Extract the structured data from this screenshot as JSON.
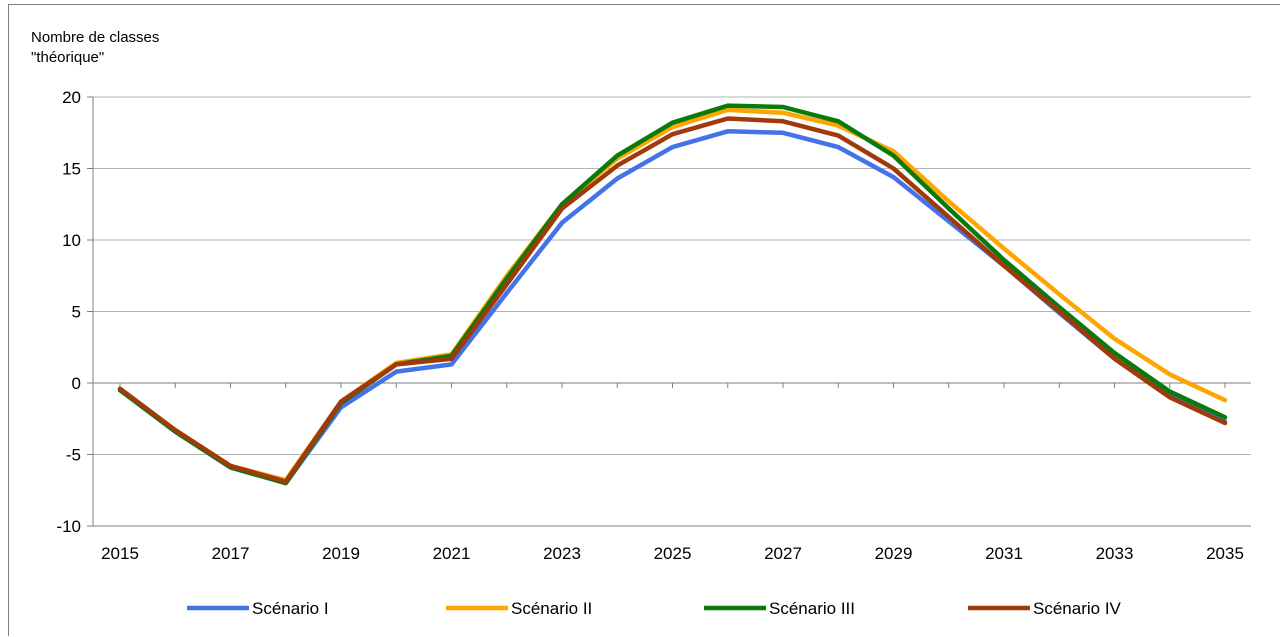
{
  "chart_data": {
    "type": "line",
    "title": "",
    "ylabel_lines": [
      "Nombre de classes",
      "\"théorique\""
    ],
    "xlabel": "",
    "ylim": [
      -10,
      20
    ],
    "yticks": [
      20,
      15,
      10,
      5,
      0,
      -5,
      -10
    ],
    "ytick_labels": [
      "20",
      "15",
      "10",
      "5",
      "0",
      "-5",
      "-10"
    ],
    "x": [
      2015,
      2016,
      2017,
      2018,
      2019,
      2020,
      2021,
      2022,
      2023,
      2024,
      2025,
      2026,
      2027,
      2028,
      2029,
      2030,
      2031,
      2032,
      2033,
      2034,
      2035
    ],
    "xtick_labels": [
      "2015",
      "2017",
      "2019",
      "2021",
      "2023",
      "2025",
      "2027",
      "2029",
      "2031",
      "2033",
      "2035"
    ],
    "xlim": [
      2015,
      2035
    ],
    "grid": "horizontal",
    "legend_position": "bottom",
    "series": [
      {
        "name": "Scénario I",
        "color": "#4472e8",
        "values": [
          -0.5,
          -3.4,
          -5.9,
          -7.0,
          -1.7,
          0.8,
          1.3,
          6.3,
          11.2,
          14.3,
          16.5,
          17.6,
          17.5,
          16.5,
          14.4,
          11.3,
          8.2,
          4.9,
          1.7,
          -0.9,
          -2.7
        ]
      },
      {
        "name": "Scénario II",
        "color": "#ffa500",
        "values": [
          -0.5,
          -3.3,
          -5.8,
          -6.8,
          -1.3,
          1.4,
          2.0,
          7.5,
          12.5,
          15.7,
          17.9,
          19.1,
          18.9,
          18.0,
          16.2,
          12.7,
          9.4,
          6.2,
          3.1,
          0.6,
          -1.2
        ]
      },
      {
        "name": "Scénario III",
        "color": "#0a7a0a",
        "values": [
          -0.5,
          -3.4,
          -5.9,
          -7.0,
          -1.4,
          1.3,
          1.9,
          7.3,
          12.5,
          15.9,
          18.2,
          19.4,
          19.3,
          18.3,
          15.9,
          12.2,
          8.6,
          5.3,
          2.1,
          -0.6,
          -2.4
        ]
      },
      {
        "name": "Scénario IV",
        "color": "#a03a0a",
        "values": [
          -0.4,
          -3.3,
          -5.8,
          -6.9,
          -1.3,
          1.3,
          1.7,
          6.9,
          12.2,
          15.2,
          17.4,
          18.5,
          18.3,
          17.3,
          15.0,
          11.6,
          8.2,
          5.0,
          1.7,
          -1.0,
          -2.8
        ]
      }
    ]
  }
}
